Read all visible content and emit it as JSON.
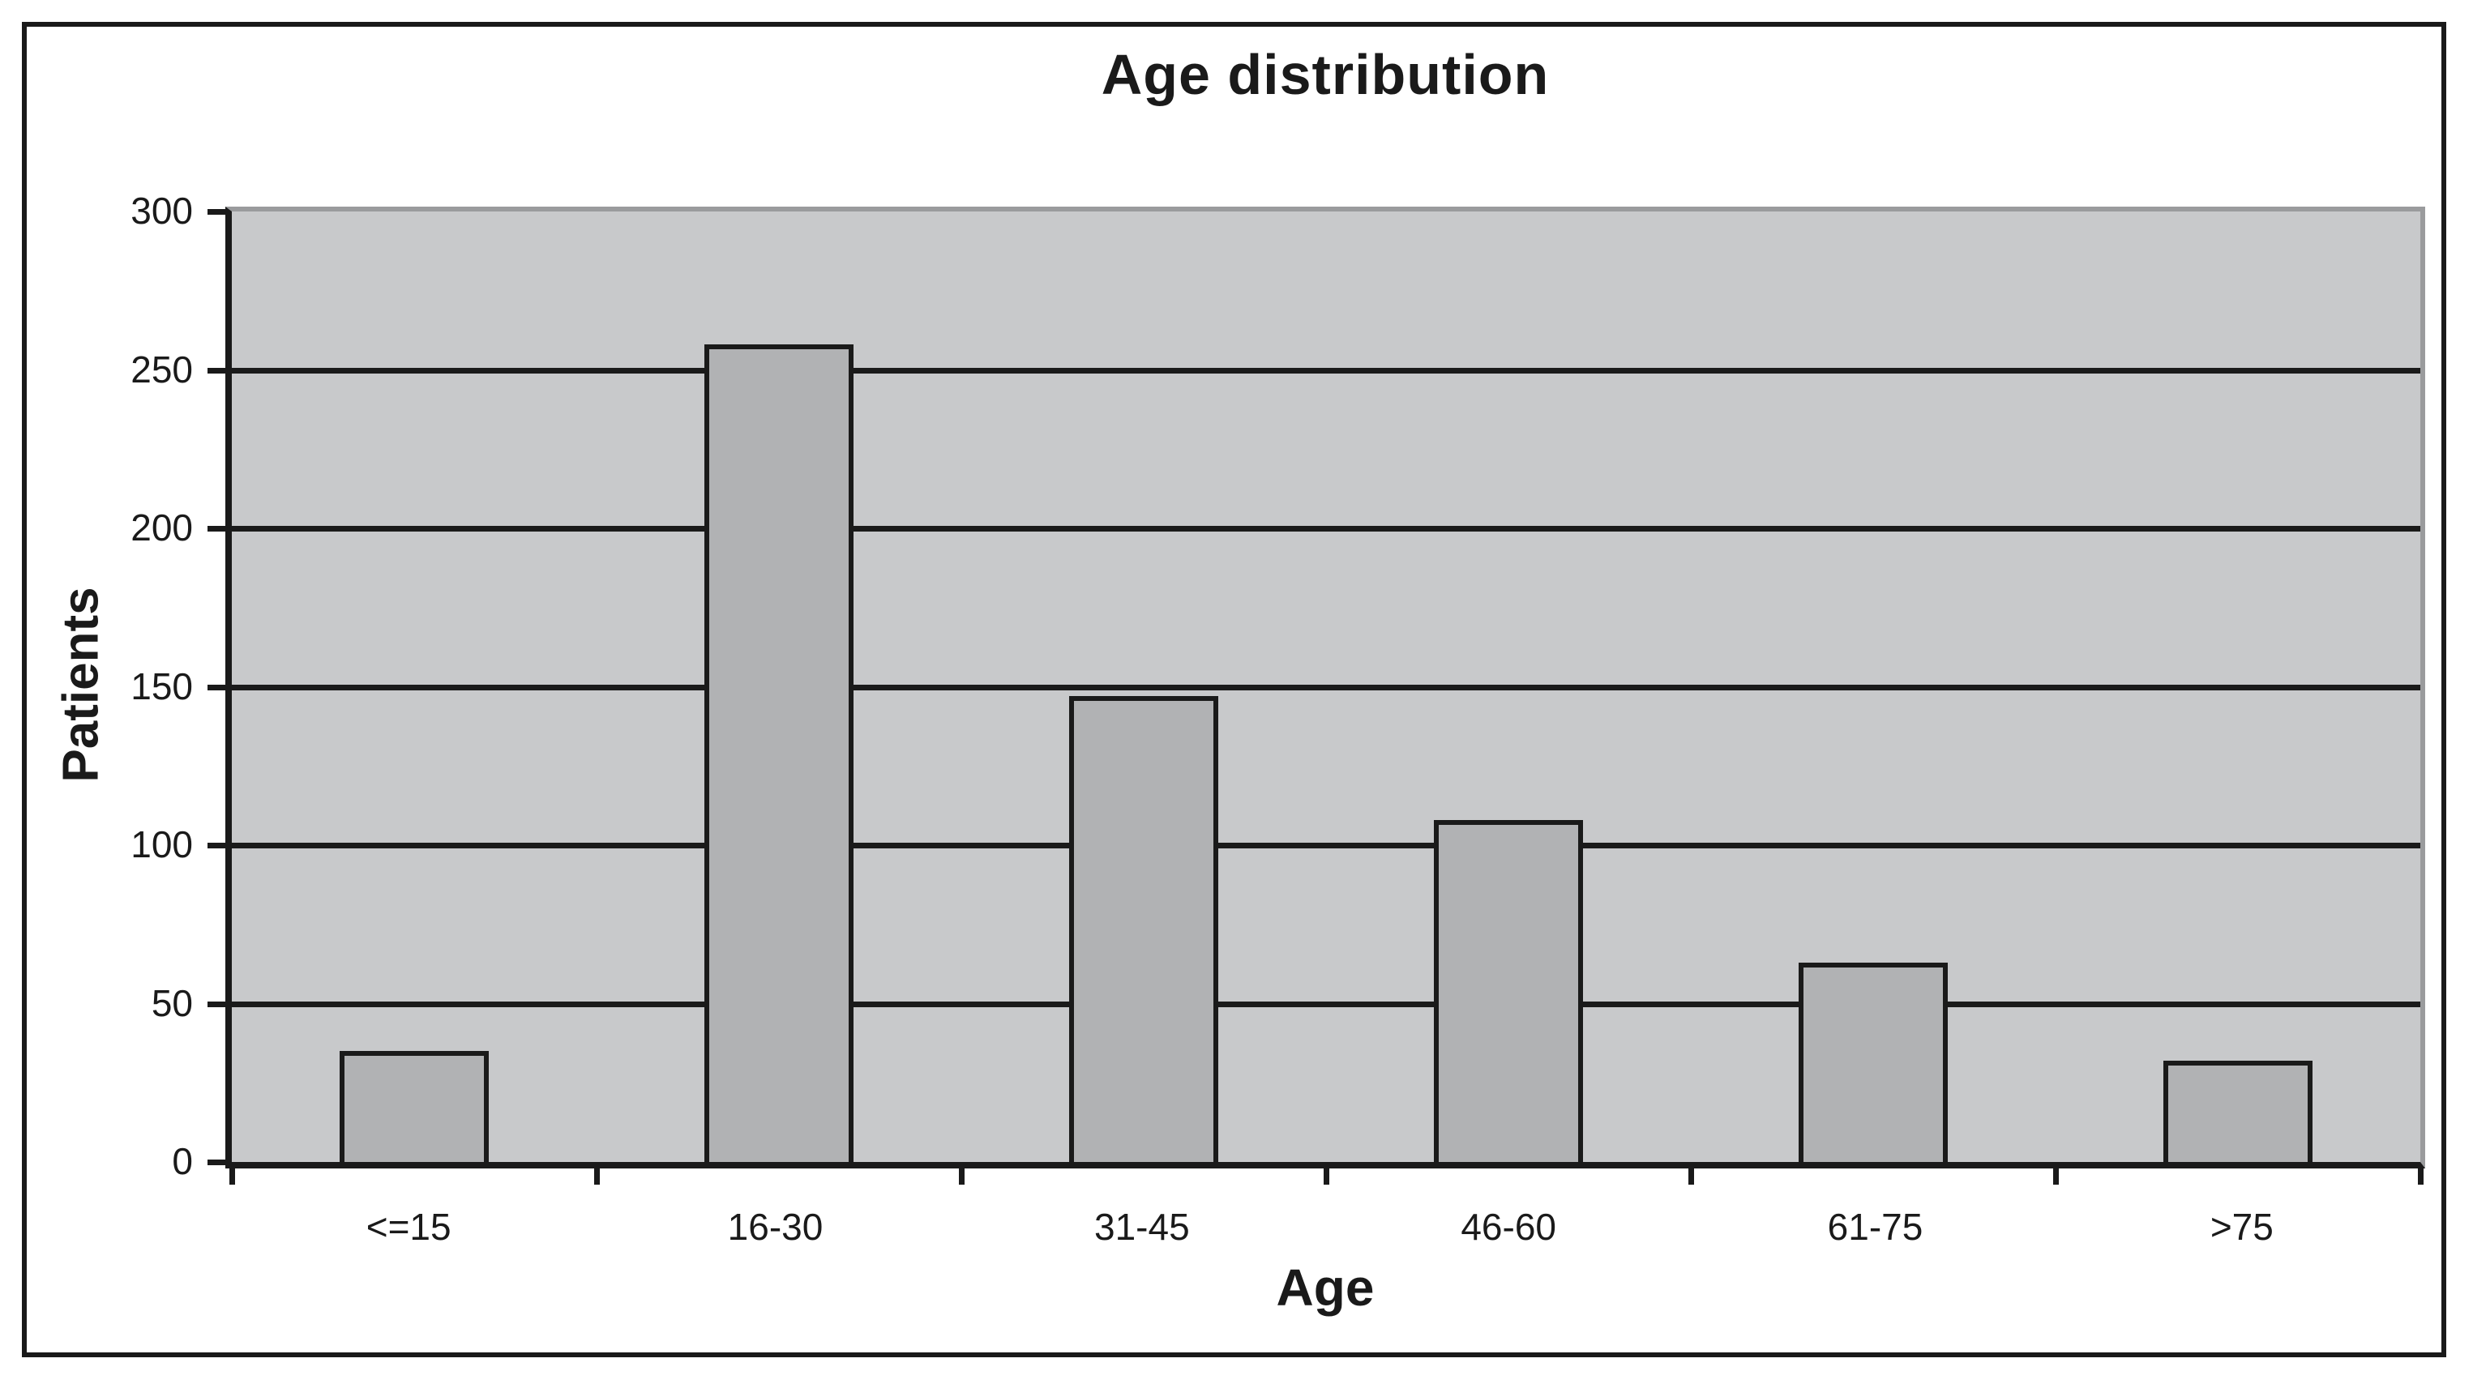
{
  "figure": {
    "title": "Age distribution"
  },
  "colors": {
    "background": "#ffffff",
    "figure_border": "#1a1a1a",
    "plot_background": "#c8c9cb",
    "plot_edge_gray": "#9a9b9d",
    "gridline": "#1a1a1a",
    "bar_fill": "#b1b2b4",
    "bar_border": "#1a1a1a",
    "text": "#1a1a1a"
  },
  "chart_data": {
    "type": "bar",
    "title": "Age distribution",
    "categories": [
      "<=15",
      "16-30",
      "31-45",
      "46-60",
      "61-75",
      ">75"
    ],
    "values": [
      35,
      258,
      147,
      108,
      63,
      32
    ],
    "xlabel": "Age",
    "ylabel": "Patients",
    "ylim": [
      0,
      300
    ],
    "ytick_step": 50,
    "ytick_labels": [
      "0",
      "50",
      "100",
      "150",
      "200",
      "250",
      "300"
    ],
    "grid": "horizontal",
    "legend": "none"
  }
}
